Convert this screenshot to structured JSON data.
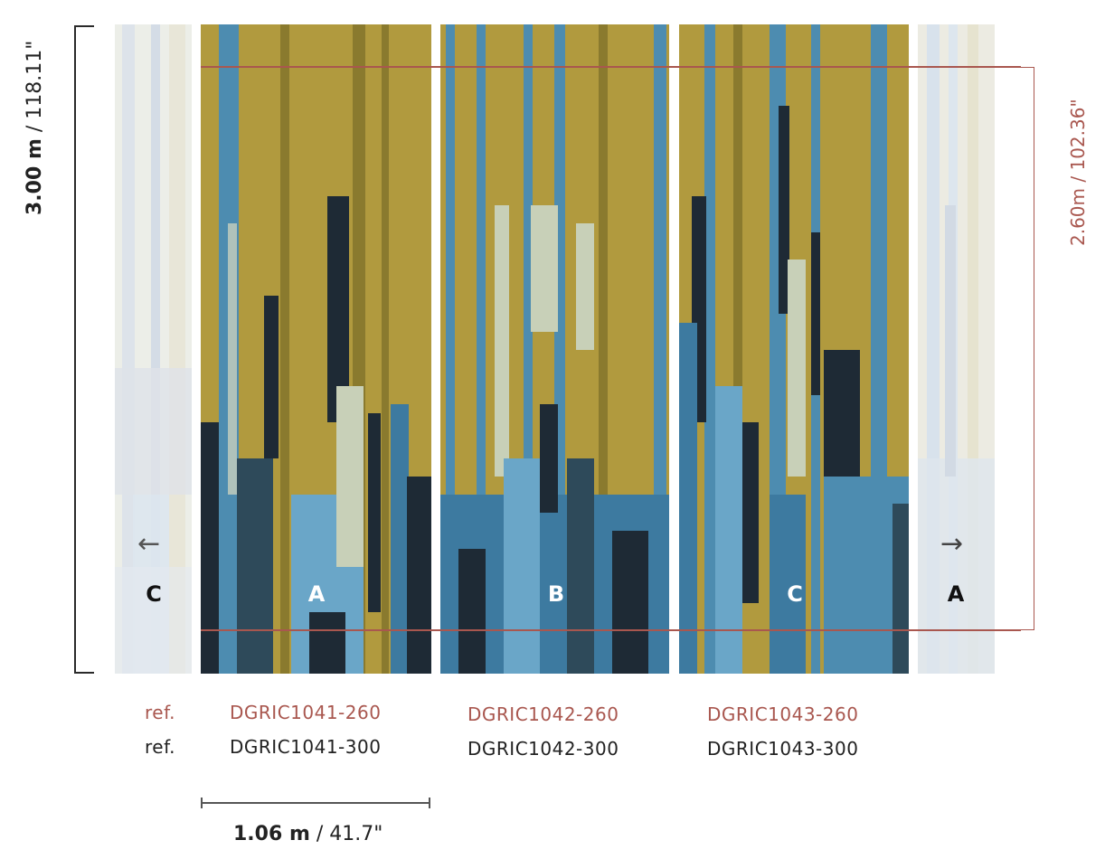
{
  "height_label": {
    "bold": "3.00 m",
    "rest": " / 118.11\""
  },
  "usable_height_label": "2.60m / 102.36\"",
  "width_label": {
    "bold": "1.06 m",
    "rest": " / 41.7\""
  },
  "panels": [
    {
      "letter": "C",
      "ref_260": "",
      "ref_300": ""
    },
    {
      "letter": "A",
      "ref_260": "DGRIC1041-260",
      "ref_300": "DGRIC1041-300"
    },
    {
      "letter": "B",
      "ref_260": "DGRIC1042-260",
      "ref_300": "DGRIC1042-300"
    },
    {
      "letter": "C",
      "ref_260": "DGRIC1043-260",
      "ref_300": "DGRIC1043-300"
    },
    {
      "letter": "A",
      "ref_260": "",
      "ref_300": ""
    }
  ],
  "ref_prefix": "ref.",
  "arrows": {
    "left": "←",
    "right": "→"
  },
  "colors": {
    "accent_red": "#a9574f",
    "ochre": "#b19a3e",
    "blue": "#4d8cb0",
    "navy": "#1e2a35",
    "pale": "#e6e9e4",
    "text_dark": "#222222"
  }
}
